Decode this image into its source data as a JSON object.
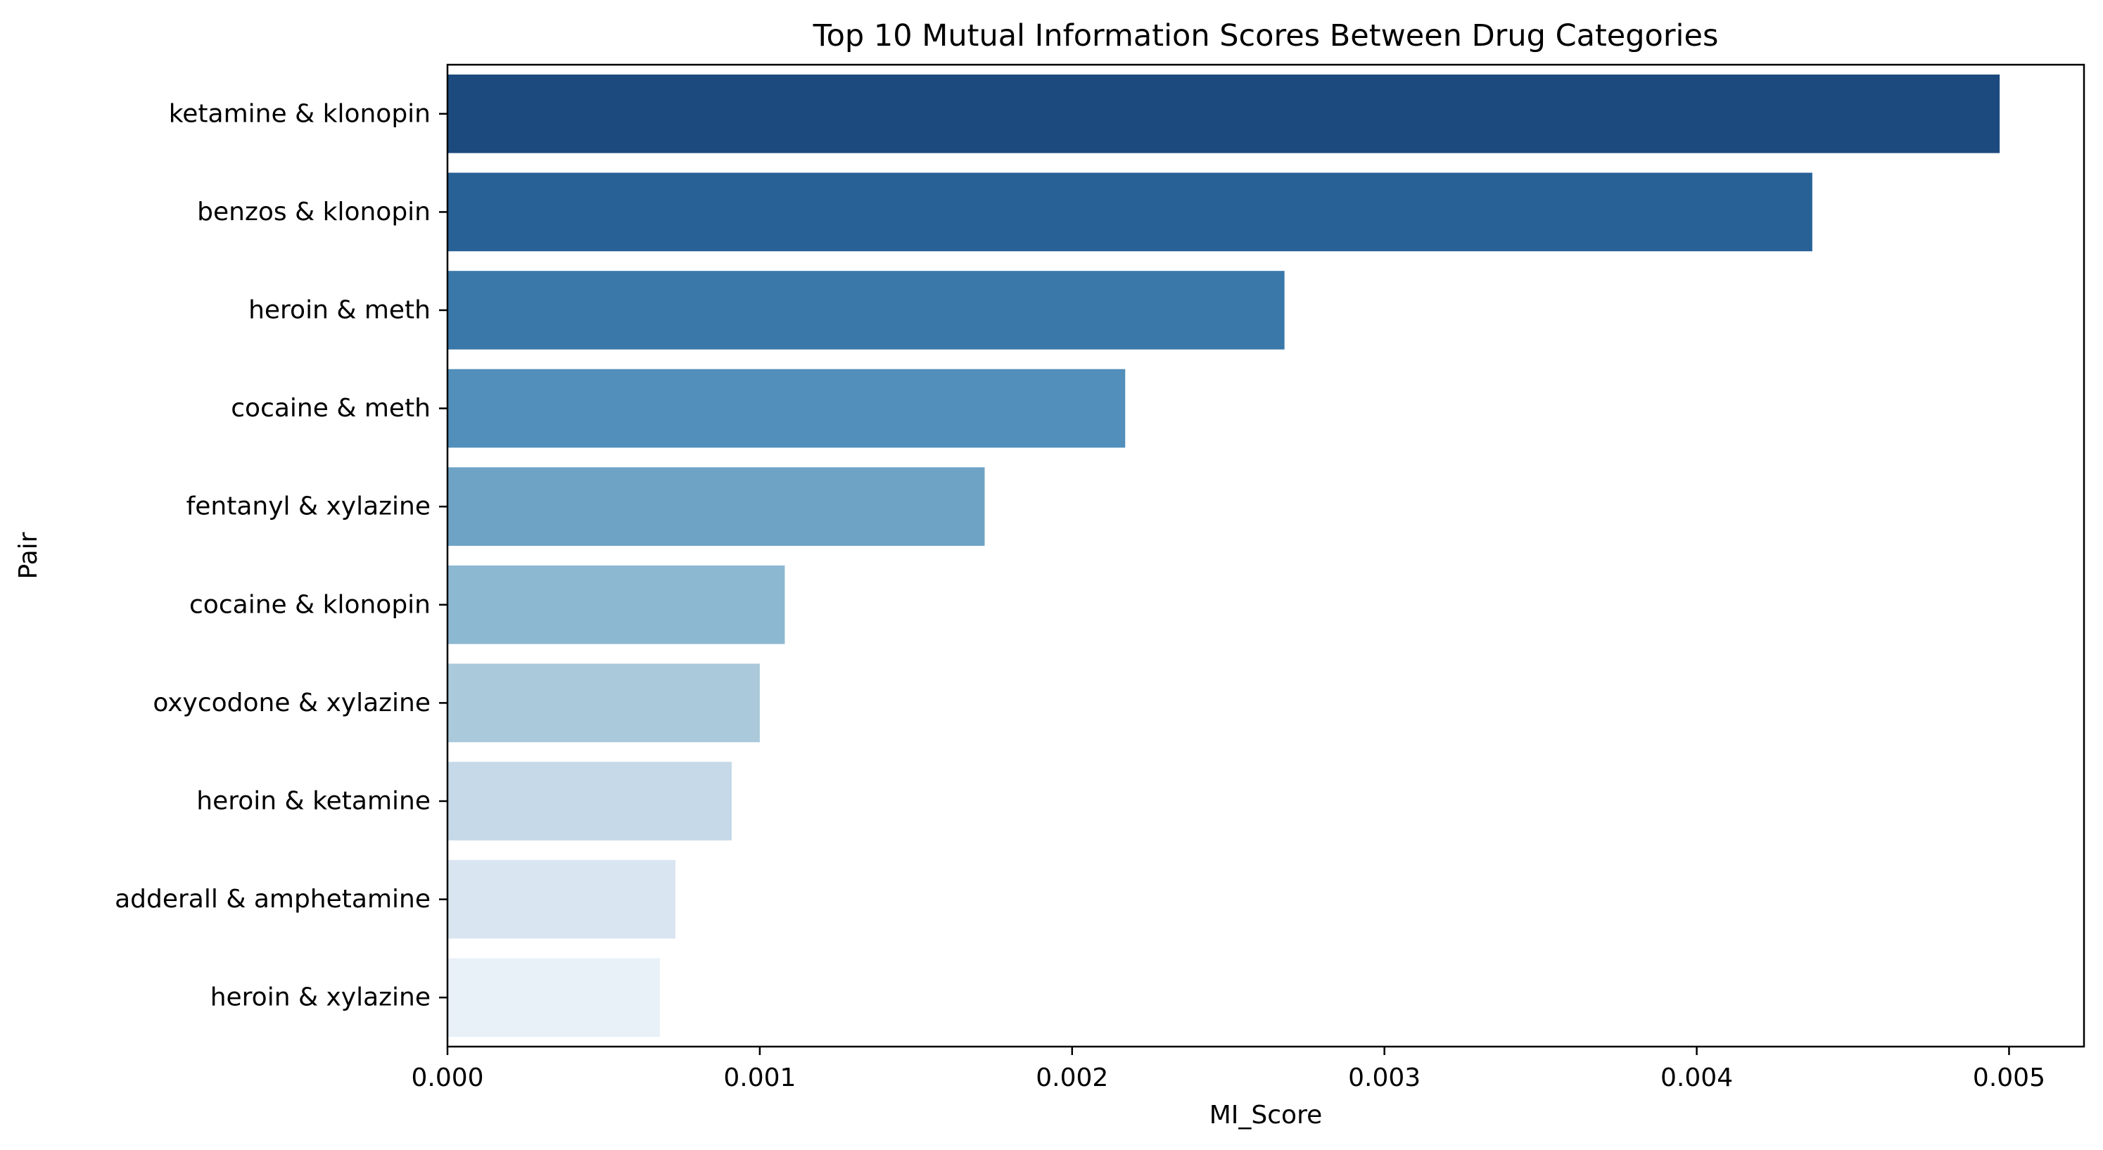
{
  "chart_data": {
    "type": "bar",
    "orientation": "horizontal",
    "title": "Top 10 Mutual Information Scores Between Drug Categories",
    "xlabel": "MI_Score",
    "ylabel": "Pair",
    "xlim": [
      0,
      0.00524
    ],
    "xticks": [
      0,
      0.001,
      0.002,
      0.003,
      0.004,
      0.005
    ],
    "xtick_labels": [
      "0.000",
      "0.001",
      "0.002",
      "0.003",
      "0.004",
      "0.005"
    ],
    "grid": false,
    "categories": [
      "ketamine & klonopin",
      "benzos & klonopin",
      "heroin & meth",
      "cocaine & meth",
      "fentanyl & xylazine",
      "cocaine & klonopin",
      "oxycodone & xylazine",
      "heroin & ketamine",
      "adderall & amphetamine",
      "heroin & xylazine"
    ],
    "values": [
      0.00497,
      0.00437,
      0.00268,
      0.00217,
      0.00172,
      0.00108,
      0.001,
      0.00091,
      0.00073,
      0.00068
    ],
    "colors": [
      "#1c4a7e",
      "#276196",
      "#3a78aa",
      "#528fba",
      "#6ea3c6",
      "#8db8d2",
      "#aacadb",
      "#c5d9e8",
      "#d9e5f1",
      "#e8f0f8"
    ]
  }
}
